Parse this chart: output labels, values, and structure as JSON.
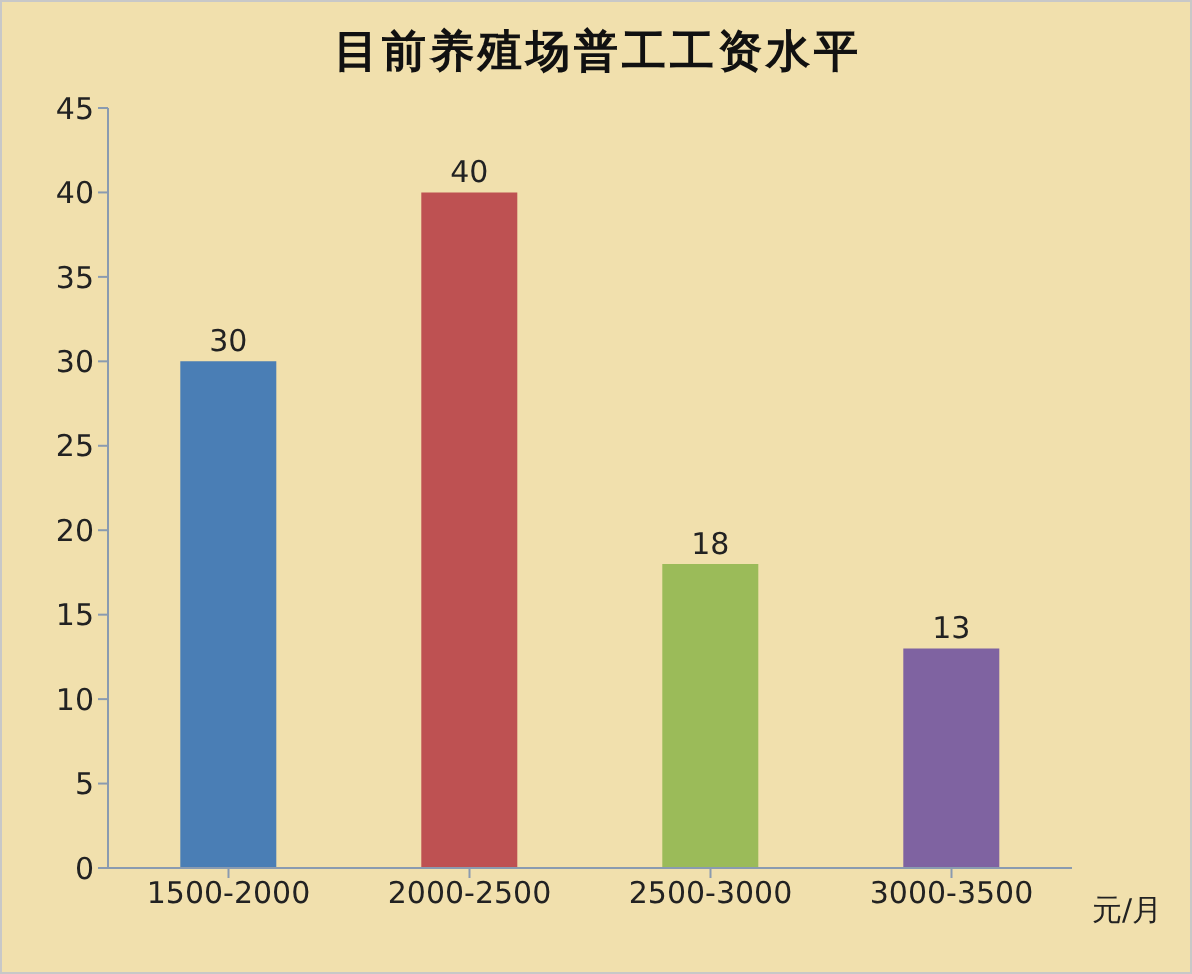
{
  "chart_data": {
    "type": "bar",
    "title": "目前养殖场普工工资水平",
    "xlabel": "元/月",
    "categories": [
      "1500-2000",
      "2000-2500",
      "2500-3000",
      "3000-3500"
    ],
    "values": [
      30,
      40,
      18,
      13
    ],
    "colors": [
      "#4a7eb5",
      "#be5152",
      "#9bbb59",
      "#7f63a1"
    ],
    "ylim": [
      0,
      45
    ],
    "yticks": [
      0,
      5,
      10,
      15,
      20,
      25,
      30,
      35,
      40,
      45
    ],
    "data_labels": true
  }
}
